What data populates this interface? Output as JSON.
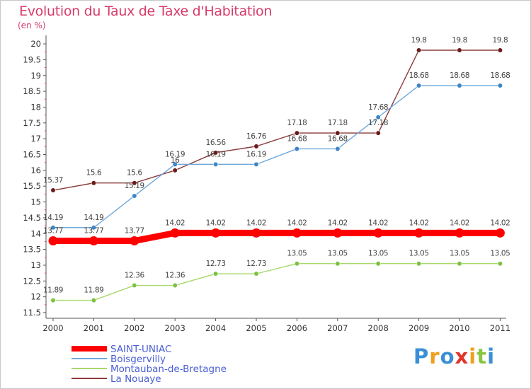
{
  "title": "Evolution du Taux de Taxe d'Habitation",
  "subtitle": "(en %)",
  "brand": {
    "text": "Proxiti",
    "letters": [
      {
        "ch": "P",
        "color": "#3a8fd6"
      },
      {
        "ch": "r",
        "color": "#f0a020"
      },
      {
        "ch": "o",
        "color": "#3a8fd6"
      },
      {
        "ch": "x",
        "color": "#e2352b"
      },
      {
        "ch": "i",
        "color": "#f0a020"
      },
      {
        "ch": "t",
        "color": "#8ac640"
      },
      {
        "ch": "i",
        "color": "#3a8fd6"
      }
    ]
  },
  "chart_data": {
    "type": "line",
    "title": "Evolution du Taux de Taxe d'Habitation",
    "ylabel": "(en %)",
    "xlabel": "",
    "ylim": [
      11.5,
      20
    ],
    "y_ticks": [
      "11.5",
      "12",
      "12.5",
      "13",
      "13.5",
      "14",
      "14.5",
      "15",
      "15.5",
      "16",
      "16.5",
      "17",
      "17.5",
      "18",
      "18.5",
      "19",
      "19.5",
      "20"
    ],
    "x": [
      "2000",
      "2001",
      "2002",
      "2003",
      "2004",
      "2005",
      "2006",
      "2007",
      "2008",
      "2009",
      "2010",
      "2011"
    ],
    "legend_position": "bottom-left",
    "grid": false,
    "series": [
      {
        "name": "SAINT-UNIAC",
        "color": "#ff0000",
        "point_color": "#ff0000",
        "width": 9,
        "values": [
          13.77,
          13.77,
          13.77,
          14.02,
          14.02,
          14.02,
          14.02,
          14.02,
          14.02,
          14.02,
          14.02,
          14.02
        ],
        "labels": [
          "13.77",
          "13.77",
          "13.77",
          "14.02",
          "14.02",
          "14.02",
          "14.02",
          "14.02",
          "14.02",
          "14.02",
          "14.02",
          "14.02"
        ]
      },
      {
        "name": "Boisgervilly",
        "color": "#6fa8dc",
        "point_color": "#3d85c6",
        "width": 1.4,
        "values": [
          14.19,
          14.19,
          15.19,
          16.19,
          16.19,
          16.19,
          16.68,
          16.68,
          17.68,
          18.68,
          18.68,
          18.68
        ],
        "labels": [
          "14.19",
          "14.19",
          "15.19",
          "16.19",
          "16.19",
          "16.19",
          "16.68",
          "16.68",
          "17.68",
          "18.68",
          "18.68",
          "18.68"
        ]
      },
      {
        "name": "Montauban-de-Bretagne",
        "color": "#a6d96a",
        "point_color": "#7cc242",
        "width": 1.4,
        "values": [
          11.89,
          11.89,
          12.36,
          12.36,
          12.73,
          12.73,
          13.05,
          13.05,
          13.05,
          13.05,
          13.05,
          13.05
        ],
        "labels": [
          "11.89",
          "11.89",
          "12.36",
          "12.36",
          "12.73",
          "12.73",
          "13.05",
          "13.05",
          "13.05",
          "13.05",
          "13.05",
          "13.05"
        ]
      },
      {
        "name": "La Nouaye",
        "color": "#8b3a3a",
        "point_color": "#6b1a1a",
        "width": 1.4,
        "values": [
          15.37,
          15.6,
          15.6,
          16,
          16.56,
          16.76,
          17.18,
          17.18,
          17.18,
          19.8,
          19.8,
          19.8
        ],
        "labels": [
          "15.37",
          "15.6",
          "15.6",
          "16",
          "16.56",
          "16.76",
          "17.18",
          "17.18",
          "17.18",
          "19.8",
          "19.8",
          "19.8"
        ]
      }
    ]
  }
}
